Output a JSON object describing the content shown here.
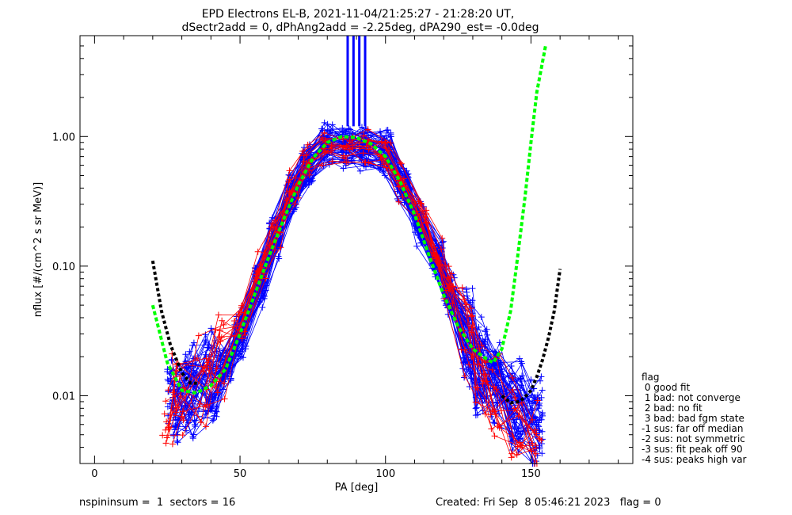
{
  "title_line1": "EPD Electrons EL-B, 2021-11-04/21:25:27 - 21:28:20 UT,",
  "title_line2": "dSectr2add = 0, dPhAng2add = -2.25deg, dPA290_est=  -0.0deg",
  "footer_left": "nspininsum =  1  sectors = 16",
  "footer_right": "Created: Fri Sep  8 05:46:21 2023   flag = 0",
  "legend": {
    "title": "flag",
    "items": [
      " 0 good fit",
      " 1 bad: not converge",
      " 2 bad: no fit",
      " 3 bad: bad fgm state",
      "-1 sus: far off median",
      "-2 sus: not symmetric",
      "-3 sus: fit peak off 90",
      "-4 sus: peaks high var"
    ]
  },
  "colors": {
    "blue": "#0000ff",
    "red": "#ff0000",
    "green": "#00ff00",
    "black": "#000000"
  },
  "chart_data": {
    "type": "line",
    "xlabel": "PA [deg]",
    "ylabel": "nflux [#/(cm^2 s sr MeV)]",
    "xlim": [
      -5,
      185
    ],
    "ylim": [
      0.003,
      6
    ],
    "yscale": "log",
    "xticks": [
      0,
      50,
      100,
      150
    ],
    "xtick_labels": [
      "0",
      "50",
      "100",
      "150"
    ],
    "yticks": [
      0.01,
      0.1,
      1.0
    ],
    "ytick_labels": [
      "0.01",
      "0.10",
      "1.00"
    ],
    "series": [
      {
        "color": "blue",
        "style": "lines+plus",
        "count": 60,
        "pa": [
          27,
          33,
          40,
          45,
          50,
          57,
          62,
          68,
          73,
          80,
          87,
          93,
          100,
          106,
          112,
          118,
          122,
          128,
          133,
          138,
          145,
          152
        ],
        "flux": [
          0.0085,
          0.011,
          0.013,
          0.016,
          0.028,
          0.07,
          0.16,
          0.35,
          0.58,
          0.85,
          0.82,
          0.8,
          0.75,
          0.42,
          0.21,
          0.11,
          0.06,
          0.028,
          0.017,
          0.011,
          0.008,
          0.006
        ]
      },
      {
        "color": "red",
        "style": "lines+plus",
        "count": 14,
        "pa": [
          25,
          30,
          37,
          43,
          50,
          57,
          62,
          68,
          73,
          80,
          87,
          93,
          100,
          106,
          112,
          118,
          122,
          128,
          133,
          138,
          145,
          152
        ],
        "flux": [
          0.009,
          0.009,
          0.012,
          0.02,
          0.035,
          0.09,
          0.18,
          0.38,
          0.6,
          0.8,
          0.75,
          0.8,
          0.7,
          0.45,
          0.25,
          0.12,
          0.07,
          0.032,
          0.012,
          0.009,
          0.006,
          0.005
        ]
      },
      {
        "color": "blue",
        "style": "vertical-bar",
        "pa": [
          87,
          89,
          91,
          93
        ],
        "flux": [
          1.2,
          6
        ]
      },
      {
        "color": "green",
        "style": "dashed-fit",
        "pa": [
          20,
          25,
          30,
          35,
          40,
          45,
          50,
          55,
          60,
          65,
          70,
          75,
          80,
          85,
          90,
          95,
          100,
          105,
          110,
          115,
          120,
          125,
          130,
          135,
          137,
          140,
          143,
          145,
          148,
          150,
          152,
          155
        ],
        "flux": [
          0.05,
          0.018,
          0.011,
          0.0105,
          0.012,
          0.016,
          0.03,
          0.06,
          0.12,
          0.23,
          0.42,
          0.68,
          0.9,
          1.0,
          0.98,
          0.88,
          0.7,
          0.45,
          0.25,
          0.12,
          0.06,
          0.034,
          0.023,
          0.019,
          0.018,
          0.023,
          0.045,
          0.1,
          0.35,
          0.9,
          2.2,
          5.0
        ]
      },
      {
        "color": "black",
        "style": "dashed-fit",
        "pa": [
          20,
          23,
          26,
          30,
          33,
          36,
          140,
          143,
          146,
          148,
          150,
          152,
          154,
          156,
          158,
          160
        ],
        "flux": [
          0.11,
          0.045,
          0.025,
          0.015,
          0.0125,
          0.0125,
          0.01,
          0.0088,
          0.009,
          0.0098,
          0.011,
          0.014,
          0.019,
          0.028,
          0.045,
          0.095
        ]
      }
    ]
  }
}
